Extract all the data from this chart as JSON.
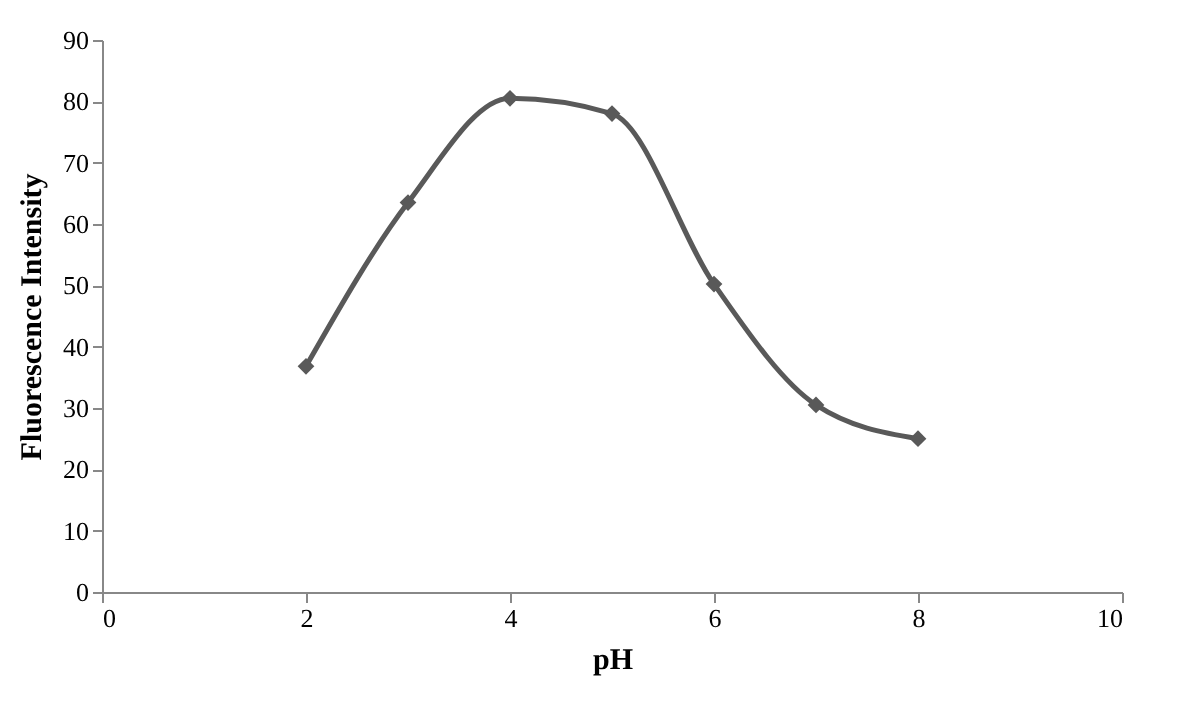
{
  "chart_data": {
    "type": "line",
    "xlabel": "pH",
    "ylabel": "Fluorescence Intensity",
    "x": [
      2,
      3,
      4,
      5,
      6,
      7,
      8
    ],
    "series": [
      {
        "color": "#595959",
        "values": [
          36.8,
          63.5,
          80.5,
          78,
          50.2,
          30.5,
          25
        ]
      }
    ],
    "xlim": [
      0,
      10
    ],
    "xticks": [
      0,
      2,
      4,
      6,
      8,
      10
    ],
    "ylim": [
      0,
      90
    ],
    "yticks": [
      0,
      10,
      20,
      30,
      40,
      50,
      60,
      70,
      80,
      90
    ],
    "grid": false,
    "legend": false,
    "marker": "diamond",
    "line_style": "solid"
  }
}
